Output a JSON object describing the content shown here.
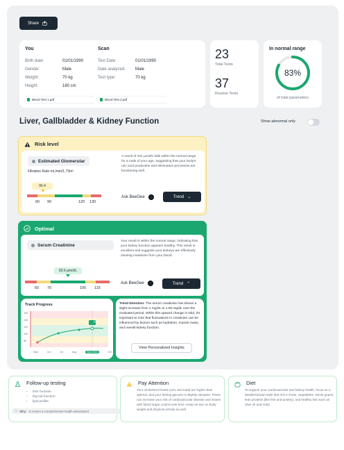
{
  "share": {
    "label": "Share",
    "icon": "share-icon"
  },
  "you": {
    "heading": "You",
    "rows": [
      {
        "k": "Birth date:",
        "v": "01/01/1990"
      },
      {
        "k": "Gender:",
        "v": "Male"
      },
      {
        "k": "Weight:",
        "v": "70 kg"
      },
      {
        "k": "Height:",
        "v": "180 cm"
      }
    ],
    "file": "Blood Test 1.pdf"
  },
  "scan": {
    "heading": "Scan",
    "rows": [
      {
        "k": "Test Date:",
        "v": "01/01/1990"
      },
      {
        "k": "Date analyzed:",
        "v": "Male"
      },
      {
        "k": "Test type:",
        "v": "70 kg"
      }
    ],
    "file": "Blood Test 2.pdf"
  },
  "stats": {
    "total_tests": "23",
    "total_tests_label": "Total Tests",
    "routine_tests": "37",
    "routine_tests_label": "Routine Tests"
  },
  "normal_range": {
    "title": "In normal range",
    "percent_text": "83%",
    "percent": 0.83,
    "subtitle": "of total parameters",
    "color": "#1aa870"
  },
  "section": {
    "title": "Liver, Gallbladder & Kidney Function",
    "toggle_label": "Show abnormal only"
  },
  "risk": {
    "header": "Risk level",
    "color": "#fdf1c4",
    "param_name": "Estimated Glomerular",
    "param_sub": "Filtration Rate mL/min/1.73m²",
    "value_label": "90.4",
    "ticks": [
      "60",
      "90",
      "120",
      "130"
    ],
    "description": "A result of 331 µmol/L falls within the normal range for a male of your age, suggesting that your body's uric acid production and elimination processes are functioning well.",
    "ask_label": "Ask BeeGee",
    "trend_label": "Trend"
  },
  "optimal": {
    "header": "Optimal",
    "color": "#1aa870",
    "param_name": "Serum Creatinine",
    "value_label": "93.6 µmol/L",
    "ticks": [
      "60",
      "70",
      "105",
      "115"
    ],
    "description": "Your result is within the normal range, indicating that your kidney function appears healthy. This result is excellent and suggests your kidneys are effectively clearing creatinine from your blood.",
    "ask_label": "Ask BeeGee",
    "trend_label": "Trend"
  },
  "track": {
    "title": "Track Progress",
    "y_ticks": [
      "160",
      "140",
      "120",
      "100",
      "80"
    ],
    "months": [
      "May",
      "Jun",
      "Jul",
      "Aug",
      "Sep 2024",
      "Oct"
    ],
    "point_label": "37"
  },
  "trend_direction": {
    "label": "Trend Direction:",
    "text": " The serum creatinine has shown a slight increase from 1 mg/dL to 1.06 mg/dL over the evaluated period. While this upward change is mild, it's important to note that fluctuations in creatinine can be influenced by factors such as hydration, muscle mass, and overall kidney function.",
    "button": "View Personalized Insights"
  },
  "followup": {
    "title": "Follow-up testing",
    "items": [
      "liver function",
      "thyroid function",
      "lipid profile"
    ],
    "why_label": "Why:",
    "why_text": " to ensure a comprehensive health assessment"
  },
  "attention": {
    "title": "Pay Attention",
    "text": "Your cholesterol levels (LDL and total) are higher than optimal, and your fasting glucose is slightly elevated. These can increase your risk of cardiovascular disease and issues with blood sugar control over time. Keep an eye on body weight and physical activity as well."
  },
  "diet": {
    "title": "Diet",
    "text": "To support your cardiovascular and kidney health, focus on a Mediterranean-style diet rich in fruits, vegetables, whole grains, lean proteins (like fish and poultry), and healthy fats such as olive oil and nuts)."
  }
}
